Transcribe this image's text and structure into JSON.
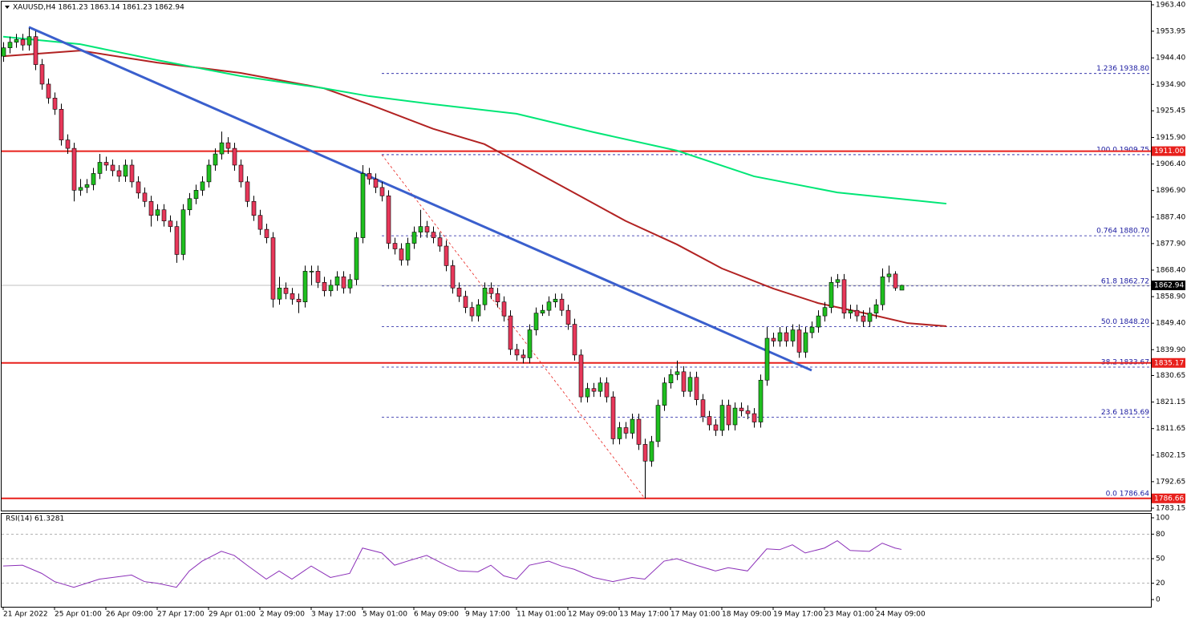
{
  "chart_data": {
    "type": "candlestick",
    "header": "XAUUSD,H4  1861.23 1863.14 1861.23 1862.94",
    "bull_color": "#1fbf1f",
    "bear_color": "#e8385a",
    "candles": [
      [
        1945,
        1950,
        1943,
        1948
      ],
      [
        1948,
        1952,
        1946,
        1950
      ],
      [
        1950,
        1953,
        1948,
        1951
      ],
      [
        1951,
        1953,
        1947,
        1949
      ],
      [
        1949,
        1955,
        1947,
        1952
      ],
      [
        1952,
        1954,
        1940,
        1942
      ],
      [
        1942,
        1944,
        1933,
        1935
      ],
      [
        1935,
        1937,
        1928,
        1930
      ],
      [
        1930,
        1932,
        1924,
        1926
      ],
      [
        1926,
        1928,
        1913,
        1915
      ],
      [
        1915,
        1917,
        1910,
        1912
      ],
      [
        1912,
        1914,
        1893,
        1897
      ],
      [
        1897,
        1901,
        1895,
        1898
      ],
      [
        1898,
        1901,
        1896,
        1899
      ],
      [
        1899,
        1905,
        1897,
        1903
      ],
      [
        1903,
        1910,
        1901,
        1907
      ],
      [
        1907,
        1909,
        1904,
        1906
      ],
      [
        1906,
        1908,
        1902,
        1904
      ],
      [
        1904,
        1906,
        1900,
        1902
      ],
      [
        1902,
        1908,
        1900,
        1906
      ],
      [
        1906,
        1908,
        1898,
        1900
      ],
      [
        1900,
        1902,
        1894,
        1896
      ],
      [
        1896,
        1898,
        1891,
        1893
      ],
      [
        1893,
        1895,
        1884,
        1888
      ],
      [
        1888,
        1892,
        1886,
        1890
      ],
      [
        1890,
        1892,
        1884,
        1886
      ],
      [
        1886,
        1888,
        1882,
        1884
      ],
      [
        1884,
        1886,
        1871,
        1874
      ],
      [
        1874,
        1892,
        1872,
        1890
      ],
      [
        1890,
        1896,
        1888,
        1894
      ],
      [
        1894,
        1899,
        1892,
        1897
      ],
      [
        1897,
        1902,
        1895,
        1900
      ],
      [
        1900,
        1908,
        1898,
        1906
      ],
      [
        1906,
        1912,
        1904,
        1910
      ],
      [
        1910,
        1918,
        1908,
        1914
      ],
      [
        1914,
        1916,
        1910,
        1912
      ],
      [
        1912,
        1914,
        1904,
        1906
      ],
      [
        1906,
        1908,
        1898,
        1900
      ],
      [
        1900,
        1902,
        1891,
        1893
      ],
      [
        1893,
        1895,
        1886,
        1888
      ],
      [
        1888,
        1890,
        1881,
        1883
      ],
      [
        1883,
        1885,
        1878,
        1880
      ],
      [
        1880,
        1882,
        1855,
        1858
      ],
      [
        1858,
        1866,
        1856,
        1862
      ],
      [
        1862,
        1864,
        1858,
        1860
      ],
      [
        1860,
        1862,
        1856,
        1858
      ],
      [
        1858,
        1860,
        1853,
        1857
      ],
      [
        1857,
        1870,
        1855,
        1868
      ],
      [
        1868,
        1870,
        1863,
        1868
      ],
      [
        1868,
        1870,
        1862,
        1864
      ],
      [
        1864,
        1866,
        1859,
        1861
      ],
      [
        1861,
        1865,
        1859,
        1863
      ],
      [
        1863,
        1868,
        1861,
        1866
      ],
      [
        1866,
        1868,
        1860,
        1862
      ],
      [
        1862,
        1867,
        1860,
        1865
      ],
      [
        1865,
        1882,
        1863,
        1880
      ],
      [
        1880,
        1906,
        1878,
        1903
      ],
      [
        1903,
        1905,
        1899,
        1901
      ],
      [
        1901,
        1903,
        1896,
        1898
      ],
      [
        1898,
        1900,
        1893,
        1895
      ],
      [
        1895,
        1897,
        1876,
        1878
      ],
      [
        1878,
        1880,
        1874,
        1876
      ],
      [
        1876,
        1878,
        1870,
        1872
      ],
      [
        1872,
        1880,
        1870,
        1878
      ],
      [
        1878,
        1884,
        1876,
        1882
      ],
      [
        1882,
        1890,
        1880,
        1884
      ],
      [
        1884,
        1886,
        1880,
        1882
      ],
      [
        1882,
        1884,
        1878,
        1880
      ],
      [
        1880,
        1882,
        1875,
        1877
      ],
      [
        1877,
        1879,
        1868,
        1870
      ],
      [
        1870,
        1872,
        1860,
        1862
      ],
      [
        1862,
        1864,
        1857,
        1859
      ],
      [
        1859,
        1861,
        1853,
        1855
      ],
      [
        1855,
        1857,
        1850,
        1852
      ],
      [
        1852,
        1858,
        1850,
        1856
      ],
      [
        1856,
        1864,
        1854,
        1862
      ],
      [
        1862,
        1864,
        1858,
        1860
      ],
      [
        1860,
        1862,
        1855,
        1857
      ],
      [
        1857,
        1859,
        1850,
        1852
      ],
      [
        1852,
        1854,
        1838,
        1840
      ],
      [
        1840,
        1842,
        1836,
        1838
      ],
      [
        1838,
        1840,
        1835,
        1837
      ],
      [
        1837,
        1849,
        1835,
        1847
      ],
      [
        1847,
        1855,
        1845,
        1853
      ],
      [
        1853,
        1856,
        1852,
        1854
      ],
      [
        1854,
        1859,
        1852,
        1857
      ],
      [
        1857,
        1860,
        1855,
        1858
      ],
      [
        1858,
        1860,
        1852,
        1854
      ],
      [
        1854,
        1856,
        1847,
        1849
      ],
      [
        1849,
        1851,
        1836,
        1838
      ],
      [
        1838,
        1840,
        1821,
        1823
      ],
      [
        1823,
        1828,
        1821,
        1826
      ],
      [
        1826,
        1828,
        1823,
        1825
      ],
      [
        1825,
        1830,
        1823,
        1828
      ],
      [
        1828,
        1830,
        1821,
        1823
      ],
      [
        1823,
        1825,
        1806,
        1808
      ],
      [
        1808,
        1814,
        1806,
        1812
      ],
      [
        1812,
        1814,
        1808,
        1810
      ],
      [
        1810,
        1817,
        1808,
        1815
      ],
      [
        1815,
        1817,
        1804,
        1806
      ],
      [
        1806,
        1808,
        1786.64,
        1800
      ],
      [
        1800,
        1809,
        1798,
        1807
      ],
      [
        1807,
        1822,
        1805,
        1820
      ],
      [
        1820,
        1830,
        1818,
        1828
      ],
      [
        1828,
        1833,
        1826,
        1831
      ],
      [
        1831,
        1836,
        1829,
        1832
      ],
      [
        1832,
        1834,
        1823,
        1825
      ],
      [
        1825,
        1832,
        1823,
        1830
      ],
      [
        1830,
        1832,
        1820,
        1822
      ],
      [
        1822,
        1824,
        1814,
        1816
      ],
      [
        1816,
        1818,
        1811,
        1813
      ],
      [
        1813,
        1815,
        1809,
        1811
      ],
      [
        1811,
        1822,
        1809,
        1820
      ],
      [
        1820,
        1822,
        1811,
        1813
      ],
      [
        1813,
        1821,
        1811,
        1819
      ],
      [
        1819,
        1821,
        1816,
        1818
      ],
      [
        1818,
        1820,
        1815,
        1817
      ],
      [
        1817,
        1819,
        1812,
        1814
      ],
      [
        1814,
        1831,
        1812,
        1829
      ],
      [
        1829,
        1848,
        1827,
        1844
      ],
      [
        1844,
        1846,
        1841,
        1843
      ],
      [
        1843,
        1848,
        1841,
        1846
      ],
      [
        1846,
        1848,
        1841,
        1843
      ],
      [
        1843,
        1849,
        1841,
        1847
      ],
      [
        1847,
        1849,
        1837,
        1839
      ],
      [
        1839,
        1848,
        1837,
        1846
      ],
      [
        1846,
        1850,
        1844,
        1848
      ],
      [
        1848,
        1854,
        1846,
        1852
      ],
      [
        1852,
        1857,
        1850,
        1855
      ],
      [
        1855,
        1866,
        1853,
        1864
      ],
      [
        1864,
        1867,
        1862,
        1865
      ],
      [
        1865,
        1867,
        1851,
        1853
      ],
      [
        1853,
        1856,
        1851,
        1854
      ],
      [
        1854,
        1856,
        1850,
        1852
      ],
      [
        1852,
        1854,
        1848,
        1850
      ],
      [
        1850,
        1855,
        1848,
        1853
      ],
      [
        1853,
        1858,
        1851,
        1856
      ],
      [
        1856,
        1869,
        1854,
        1866
      ],
      [
        1866,
        1870,
        1864,
        1867
      ],
      [
        1867,
        1868,
        1861,
        1862
      ],
      [
        1861.23,
        1863.14,
        1861.23,
        1862.94
      ]
    ],
    "ylim": [
      1783.15,
      1963.4
    ],
    "yticks": [
      {
        "value": 1963.4,
        "label": "1963.40"
      },
      {
        "value": 1953.95,
        "label": "1953.95"
      },
      {
        "value": 1944.4,
        "label": "1944.40"
      },
      {
        "value": 1934.9,
        "label": "1934.90"
      },
      {
        "value": 1925.45,
        "label": "1925.45"
      },
      {
        "value": 1915.9,
        "label": "1915.90"
      },
      {
        "value": 1906.4,
        "label": "1906.40"
      },
      {
        "value": 1896.9,
        "label": "1896.90"
      },
      {
        "value": 1887.4,
        "label": "1887.40"
      },
      {
        "value": 1877.9,
        "label": "1877.90"
      },
      {
        "value": 1868.4,
        "label": "1868.40"
      },
      {
        "value": 1858.9,
        "label": "1858.90"
      },
      {
        "value": 1849.4,
        "label": "1849.40"
      },
      {
        "value": 1839.9,
        "label": "1839.90"
      },
      {
        "value": 1830.65,
        "label": "1830.65"
      },
      {
        "value": 1821.15,
        "label": "1821.15"
      },
      {
        "value": 1811.65,
        "label": "1811.65"
      },
      {
        "value": 1802.15,
        "label": "1802.15"
      },
      {
        "value": 1792.65,
        "label": "1792.65"
      },
      {
        "value": 1783.15,
        "label": "1783.15"
      }
    ],
    "time_labels": [
      "21 Apr 2022",
      "25 Apr 01:00",
      "26 Apr 09:00",
      "27 Apr 17:00",
      "29 Apr 01:00",
      "2 May 09:00",
      "3 May 17:00",
      "5 May 01:00",
      "6 May 09:00",
      "9 May 17:00",
      "11 May 01:00",
      "12 May 09:00",
      "13 May 17:00",
      "17 May 01:00",
      "18 May 09:00",
      "19 May 17:00",
      "23 May 01:00",
      "24 May 09:00"
    ],
    "moving_averages": [
      {
        "color": "#b22222",
        "x": [
          0,
          12,
          24,
          37,
          50,
          57,
          67,
          75,
          82,
          90,
          97,
          105,
          112,
          120,
          127,
          135,
          141,
          147
        ],
        "values": [
          1945,
          1947,
          1942.7,
          1939,
          1933.5,
          1927.8,
          1919,
          1913.5,
          1904.8,
          1894.8,
          1886,
          1877.6,
          1869,
          1861.8,
          1856.6,
          1852.6,
          1849.4,
          1848.3
        ]
      },
      {
        "color": "#00e676",
        "x": [
          0,
          12,
          24,
          37,
          50,
          57,
          67,
          80,
          92,
          105,
          117,
          130,
          147
        ],
        "values": [
          1952,
          1949.3,
          1943.6,
          1937.9,
          1933.5,
          1930.7,
          1927.8,
          1924.4,
          1917.8,
          1911.2,
          1902,
          1896.2,
          1892.2
        ]
      }
    ],
    "trendline": {
      "color": "#3a5fcd",
      "x": [
        4,
        126
      ],
      "values": [
        1955.4,
        1832.5
      ]
    },
    "fibonacci": {
      "color": "#1a1aa0",
      "x": [
        59,
        100
      ],
      "values": [
        1909.75,
        1786.64
      ],
      "levels": [
        {
          "value": 1938.8,
          "label": "1.236 1938.80"
        },
        {
          "value": 1909.75,
          "label": "100.0 1909.75"
        },
        {
          "value": 1880.7,
          "label": "0.764 1880.70"
        },
        {
          "value": 1862.72,
          "label": "61.8 1862.72"
        },
        {
          "value": 1848.2,
          "label": "50.0 1848.20"
        },
        {
          "value": 1833.67,
          "label": "38.2 1833.67"
        },
        {
          "value": 1815.69,
          "label": "23.6 1815.69"
        },
        {
          "value": 1786.64,
          "label": "0.0 1786.64"
        }
      ]
    },
    "horizontal_lines": {
      "color": "#e8201c",
      "levels": [
        {
          "value": 1911.0,
          "label": "1911.00"
        },
        {
          "value": 1835.17,
          "label": "1835.17"
        },
        {
          "value": 1786.66,
          "label": "1786.66"
        }
      ]
    },
    "current_price": {
      "value": 1862.94,
      "label": "1862.94"
    },
    "rsi": {
      "title": "RSI(14) 61.3281",
      "color": "#8b2fb8",
      "ylim": [
        0,
        100
      ],
      "yticks": [
        100,
        80,
        50,
        20,
        0
      ],
      "levels": [
        80,
        50,
        20
      ],
      "x": [
        0,
        3,
        6,
        8,
        11,
        15,
        17,
        20,
        22,
        24,
        27,
        29,
        31,
        34,
        36,
        38,
        41,
        43,
        45,
        48,
        51,
        54,
        56,
        59,
        61,
        63,
        66,
        69,
        71,
        74,
        76,
        78,
        80,
        82,
        85,
        87,
        89,
        92,
        95,
        98,
        100,
        103,
        105,
        108,
        111,
        113,
        116,
        119,
        121,
        123,
        125,
        128,
        130,
        132,
        135,
        137,
        139,
        140
      ],
      "values": [
        41,
        42,
        32,
        22,
        15,
        25,
        27,
        30,
        22,
        20,
        15,
        35,
        47,
        59,
        54,
        42,
        25,
        35,
        25,
        41,
        27,
        32,
        63,
        57,
        42,
        47,
        54,
        42,
        35,
        34,
        42,
        29,
        25,
        42,
        47,
        41,
        37,
        27,
        22,
        27,
        25,
        47,
        50,
        42,
        35,
        39,
        35,
        62,
        61,
        67,
        57,
        63,
        72,
        60,
        59,
        69,
        63,
        61.3281
      ]
    }
  }
}
